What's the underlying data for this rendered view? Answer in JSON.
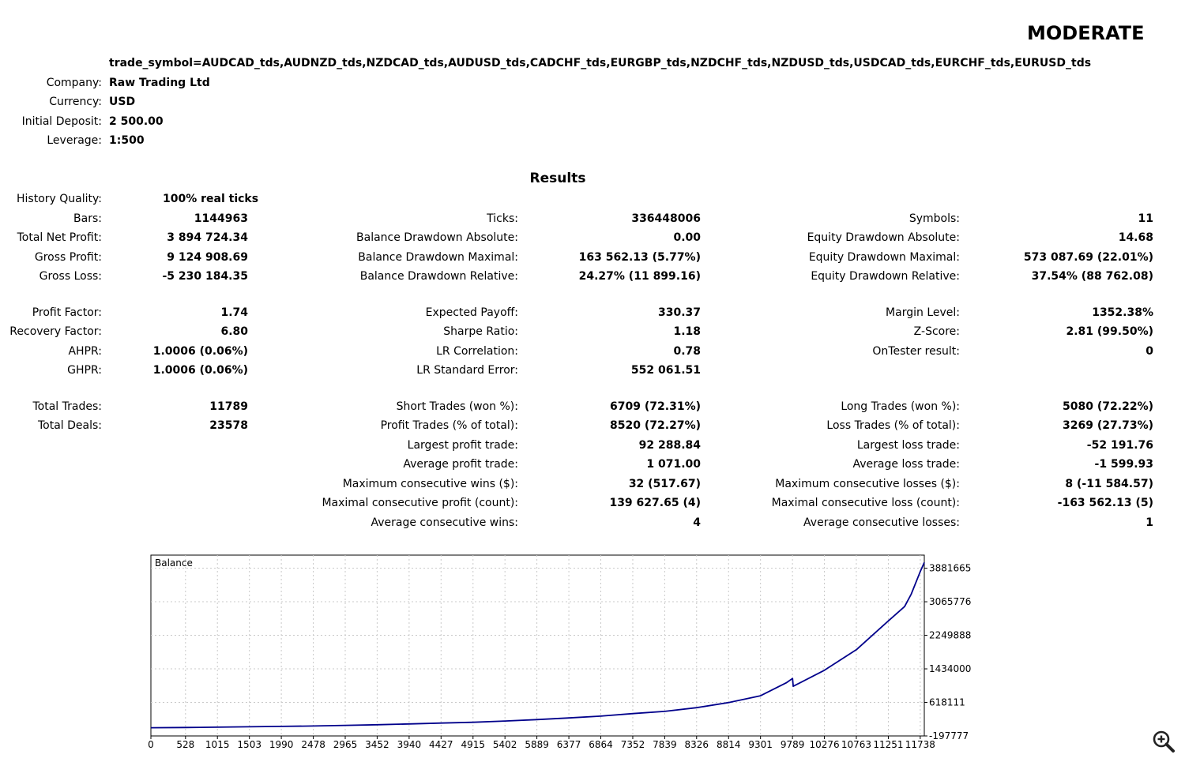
{
  "report": {
    "title": "MODERATE",
    "parameters": "trade_symbol=AUDCAD_tds,AUDNZD_tds,NZDCAD_tds,AUDUSD_tds,CADCHF_tds,EURGBP_tds,NZDCHF_tds,NZDUSD_tds,USDCAD_tds,EURCHF_tds,EURUSD_tds",
    "info": [
      {
        "label": "Company:",
        "value": "Raw Trading Ltd"
      },
      {
        "label": "Currency:",
        "value": "USD"
      },
      {
        "label": "Initial Deposit:",
        "value": "2 500.00"
      },
      {
        "label": "Leverage:",
        "value": "1:500"
      }
    ],
    "results_heading": "Results",
    "history_quality": {
      "label": "History Quality:",
      "value": "100% real ticks"
    },
    "rows": [
      {
        "cells": [
          {
            "label": "Bars:",
            "value": "1144963"
          },
          {
            "label": "Ticks:",
            "value": "336448006"
          },
          {
            "label": "Symbols:",
            "value": "11"
          }
        ]
      },
      {
        "cells": [
          {
            "label": "Total Net Profit:",
            "value": "3 894 724.34"
          },
          {
            "label": "Balance Drawdown Absolute:",
            "value": "0.00"
          },
          {
            "label": "Equity Drawdown Absolute:",
            "value": "14.68"
          }
        ]
      },
      {
        "cells": [
          {
            "label": "Gross Profit:",
            "value": "9 124 908.69"
          },
          {
            "label": "Balance Drawdown Maximal:",
            "value": "163 562.13 (5.77%)"
          },
          {
            "label": "Equity Drawdown Maximal:",
            "value": "573 087.69 (22.01%)"
          }
        ]
      },
      {
        "cells": [
          {
            "label": "Gross Loss:",
            "value": "-5 230 184.35"
          },
          {
            "label": "Balance Drawdown Relative:",
            "value": "24.27% (11 899.16)"
          },
          {
            "label": "Equity Drawdown Relative:",
            "value": "37.54% (88 762.08)"
          }
        ]
      },
      {
        "cells": [
          {
            "label": "Profit Factor:",
            "value": "1.74"
          },
          {
            "label": "Expected Payoff:",
            "value": "330.37"
          },
          {
            "label": "Margin Level:",
            "value": "1352.38%"
          }
        ]
      },
      {
        "cells": [
          {
            "label": "Recovery Factor:",
            "value": "6.80"
          },
          {
            "label": "Sharpe Ratio:",
            "value": "1.18"
          },
          {
            "label": "Z-Score:",
            "value": "2.81 (99.50%)"
          }
        ]
      },
      {
        "cells": [
          {
            "label": "AHPR:",
            "value": "1.0006 (0.06%)"
          },
          {
            "label": "LR Correlation:",
            "value": "0.78"
          },
          {
            "label": "OnTester result:",
            "value": "0"
          }
        ]
      },
      {
        "cells": [
          {
            "label": "GHPR:",
            "value": "1.0006 (0.06%)"
          },
          {
            "label": "LR Standard Error:",
            "value": "552 061.51"
          },
          null
        ]
      },
      {
        "cells": [
          {
            "label": "Total Trades:",
            "value": "11789"
          },
          {
            "label": "Short Trades (won %):",
            "value": "6709 (72.31%)"
          },
          {
            "label": "Long Trades (won %):",
            "value": "5080 (72.22%)"
          }
        ]
      },
      {
        "cells": [
          {
            "label": "Total Deals:",
            "value": "23578"
          },
          {
            "label": "Profit Trades (% of total):",
            "value": "8520 (72.27%)"
          },
          {
            "label": "Loss Trades (% of total):",
            "value": "3269 (27.73%)"
          }
        ]
      },
      {
        "cells": [
          null,
          {
            "label": "Largest profit trade:",
            "value": "92 288.84"
          },
          {
            "label": "Largest loss trade:",
            "value": "-52 191.76"
          }
        ]
      },
      {
        "cells": [
          null,
          {
            "label": "Average profit trade:",
            "value": "1 071.00"
          },
          {
            "label": "Average loss trade:",
            "value": "-1 599.93"
          }
        ]
      },
      {
        "cells": [
          null,
          {
            "label": "Maximum consecutive wins ($):",
            "value": "32 (517.67)"
          },
          {
            "label": "Maximum consecutive losses ($):",
            "value": "8 (-11 584.57)"
          }
        ]
      },
      {
        "cells": [
          null,
          {
            "label": "Maximal consecutive profit (count):",
            "value": "139 627.65 (4)"
          },
          {
            "label": "Maximal consecutive loss (count):",
            "value": "-163 562.13 (5)"
          }
        ]
      },
      {
        "cells": [
          null,
          {
            "label": "Average consecutive wins:",
            "value": "4"
          },
          {
            "label": "Average consecutive losses:",
            "value": "1"
          }
        ]
      }
    ]
  },
  "chart_data": {
    "type": "line",
    "series_label": "Balance",
    "x_ticks": [
      "0",
      "528",
      "1015",
      "1503",
      "1990",
      "2478",
      "2965",
      "3452",
      "3940",
      "4427",
      "4915",
      "5402",
      "5889",
      "6377",
      "6864",
      "7352",
      "7839",
      "8326",
      "8814",
      "9301",
      "9789",
      "10276",
      "10763",
      "11251",
      "11738"
    ],
    "y_ticks": [
      "-197777",
      "618111",
      "1434000",
      "2249888",
      "3065776",
      "3881665"
    ],
    "xlim": [
      0,
      11800
    ],
    "ylim": [
      -197777,
      4200000
    ],
    "grid": true,
    "line_color": "#00008b",
    "series": [
      {
        "x": [
          0,
          528,
          1015,
          1503,
          1990,
          2478,
          2965,
          3452,
          3940,
          4427,
          4915,
          5402,
          5889,
          6377,
          6864,
          7352,
          7839,
          8326,
          8814,
          9301,
          9700,
          9789,
          9800,
          10276,
          10763,
          11251,
          11500,
          11600,
          11738,
          11800
        ],
        "y": [
          2500,
          8000,
          15000,
          25000,
          35000,
          45000,
          60000,
          75000,
          95000,
          115000,
          135000,
          165000,
          200000,
          240000,
          285000,
          345000,
          400000,
          490000,
          615000,
          780000,
          1100000,
          1200000,
          1010000,
          1400000,
          1900000,
          2600000,
          2950000,
          3250000,
          3800000,
          4020000
        ]
      }
    ]
  },
  "zoom_icon": "zoom-in-icon"
}
